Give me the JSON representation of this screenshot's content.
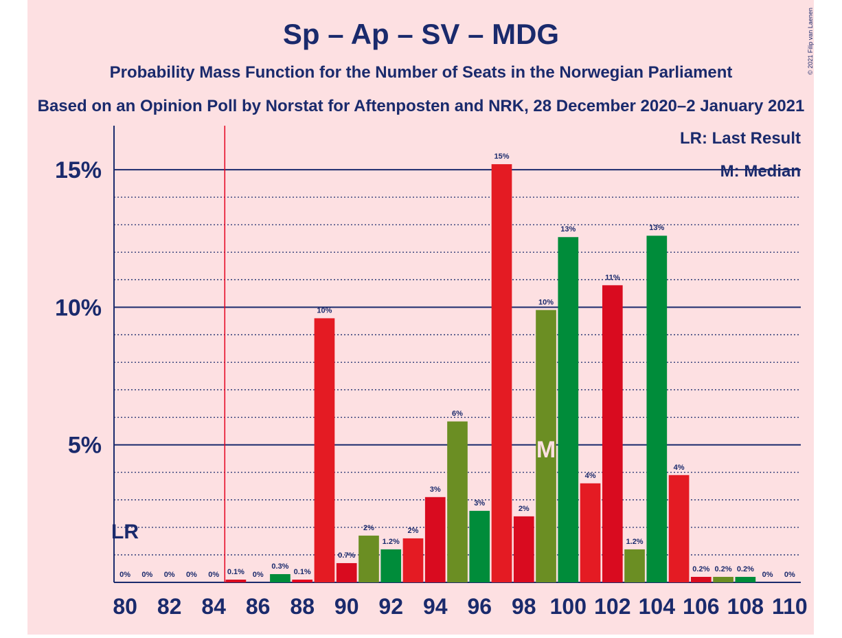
{
  "chart_data": {
    "type": "bar",
    "title": "Sp – Ap – SV – MDG",
    "subtitle": "Probability Mass Function for the Number of Seats in the Norwegian Parliament",
    "subtitle2": "Based on an Opinion Poll by Norstat for Aftenposten and NRK, 28 December 2020–2 January 2021",
    "copyright": "© 2021 Filip van Laenen",
    "legend": [
      "LR: Last Result",
      "M: Median"
    ],
    "last_result_label": "LR",
    "last_result_line": 84.5,
    "median_label": "M",
    "median": 99,
    "x": [
      80,
      81,
      82,
      83,
      84,
      85,
      86,
      87,
      88,
      89,
      90,
      91,
      92,
      93,
      94,
      95,
      96,
      97,
      98,
      99,
      100,
      101,
      102,
      103,
      104,
      105,
      106,
      107,
      108,
      109,
      110
    ],
    "values": [
      0,
      0,
      0,
      0,
      0,
      0.1,
      0,
      0.3,
      0.1,
      9.6,
      0.7,
      1.7,
      1.2,
      1.6,
      3.1,
      5.85,
      2.6,
      15.2,
      2.4,
      9.9,
      12.55,
      3.6,
      10.8,
      1.2,
      12.6,
      3.9,
      0.2,
      0.2,
      0.2,
      0,
      0
    ],
    "value_labels": [
      "0%",
      "0%",
      "0%",
      "0%",
      "0%",
      "0.1%",
      "0%",
      "0.3%",
      "0.1%",
      "10%",
      "0.7%",
      "2%",
      "1.2%",
      "2%",
      "3%",
      "6%",
      "3%",
      "15%",
      "2%",
      "10%",
      "13%",
      "4%",
      "11%",
      "1.2%",
      "13%",
      "4%",
      "0.2%",
      "0.2%",
      "0.2%",
      "0%",
      "0%"
    ],
    "colors": [
      "#e4001d",
      "#d90b1f",
      "#6b8e23",
      "#008c3a",
      "#e4001d",
      "#d90b1f",
      "#6b8e23",
      "#008c3a",
      "#e4001d",
      "#e41b23",
      "#d90b1f",
      "#6b8e23",
      "#008c3a",
      "#e41b23",
      "#d90b1f",
      "#6b8e23",
      "#008c3a",
      "#e41b23",
      "#d90b1f",
      "#6b8e23",
      "#008c3a",
      "#e41b23",
      "#d90b1f",
      "#6b8e23",
      "#008c3a",
      "#e41b23",
      "#d90b1f",
      "#6b8e23",
      "#008c3a",
      "#e41b23",
      "#d90b1f"
    ],
    "xlim": [
      79.5,
      110.5
    ],
    "xticks": [
      80,
      82,
      84,
      86,
      88,
      90,
      92,
      94,
      96,
      98,
      100,
      102,
      104,
      106,
      108,
      110
    ],
    "ylim": [
      0,
      16.6
    ],
    "yticks": [
      {
        "value": 5,
        "label": "5%"
      },
      {
        "value": 10,
        "label": "10%"
      },
      {
        "value": 15,
        "label": "15%"
      }
    ],
    "minor_yticks": [
      1,
      2,
      3,
      4,
      6,
      7,
      8,
      9,
      11,
      12,
      13,
      14
    ],
    "grid": true
  }
}
